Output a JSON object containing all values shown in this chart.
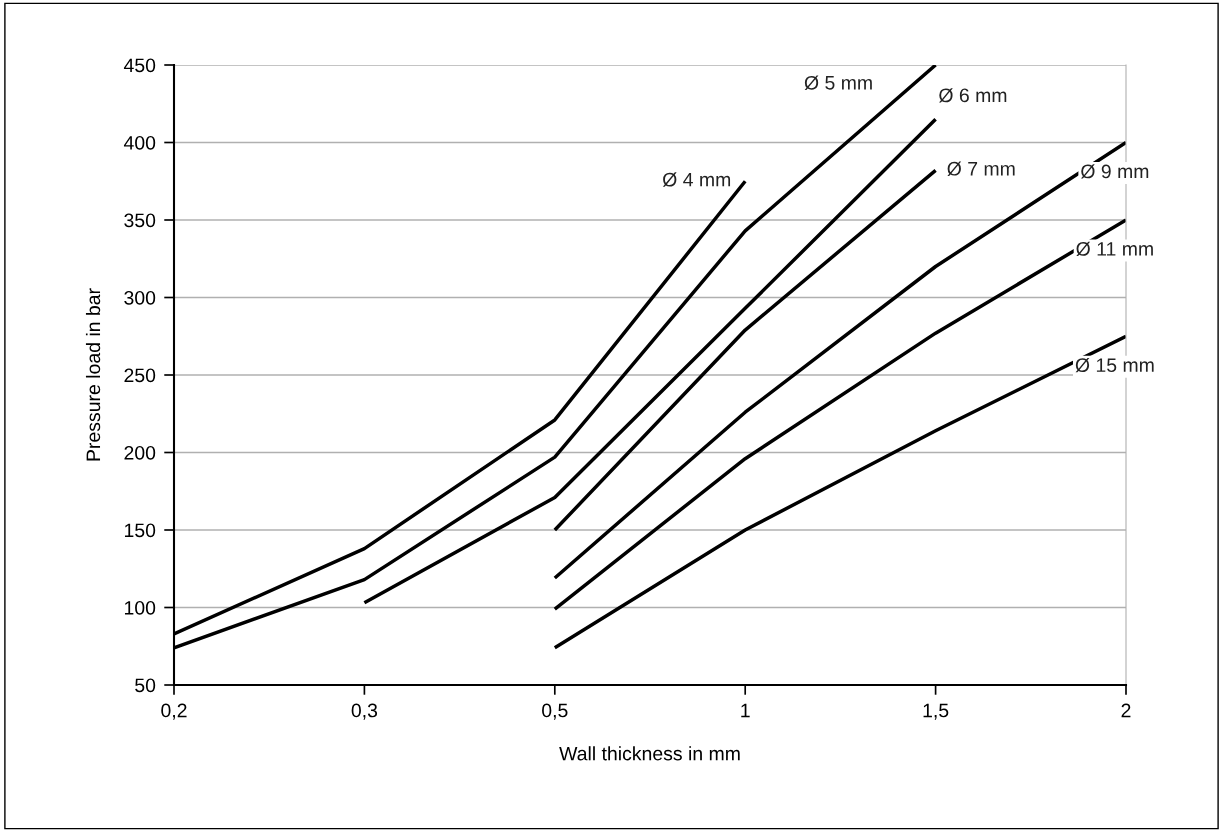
{
  "chart_data": {
    "type": "line",
    "xlabel": "Wall thickness in mm",
    "ylabel": "Pressure load in bar",
    "categories": [
      "0,2",
      "0,3",
      "0,5",
      "1",
      "1,5",
      "2"
    ],
    "series": [
      {
        "name": "Ø 4 mm",
        "color": "#000000",
        "values": [
          83,
          138,
          221,
          375,
          null,
          null
        ]
      },
      {
        "name": "Ø 5 mm",
        "color": "#000000",
        "values": [
          74,
          118,
          197,
          343,
          450,
          null
        ]
      },
      {
        "name": "Ø 6 mm",
        "color": "#000000",
        "values": [
          null,
          103,
          171,
          293,
          415,
          null
        ]
      },
      {
        "name": "Ø 7 mm",
        "color": "#000000",
        "values": [
          null,
          null,
          150,
          279,
          382,
          null
        ]
      },
      {
        "name": "Ø 9 mm",
        "color": "#000000",
        "values": [
          null,
          null,
          119,
          226,
          320,
          400
        ]
      },
      {
        "name": "Ø 11 mm",
        "color": "#000000",
        "values": [
          null,
          null,
          99,
          196,
          277,
          350
        ]
      },
      {
        "name": "Ø 15 mm",
        "color": "#000000",
        "values": [
          null,
          null,
          74,
          150,
          214,
          275
        ]
      }
    ],
    "ylim": [
      50,
      450
    ],
    "yticks": [
      50,
      100,
      150,
      200,
      250,
      300,
      350,
      400,
      450
    ],
    "grid": "y",
    "legend": false,
    "marker": "none",
    "line_style": "solid"
  }
}
